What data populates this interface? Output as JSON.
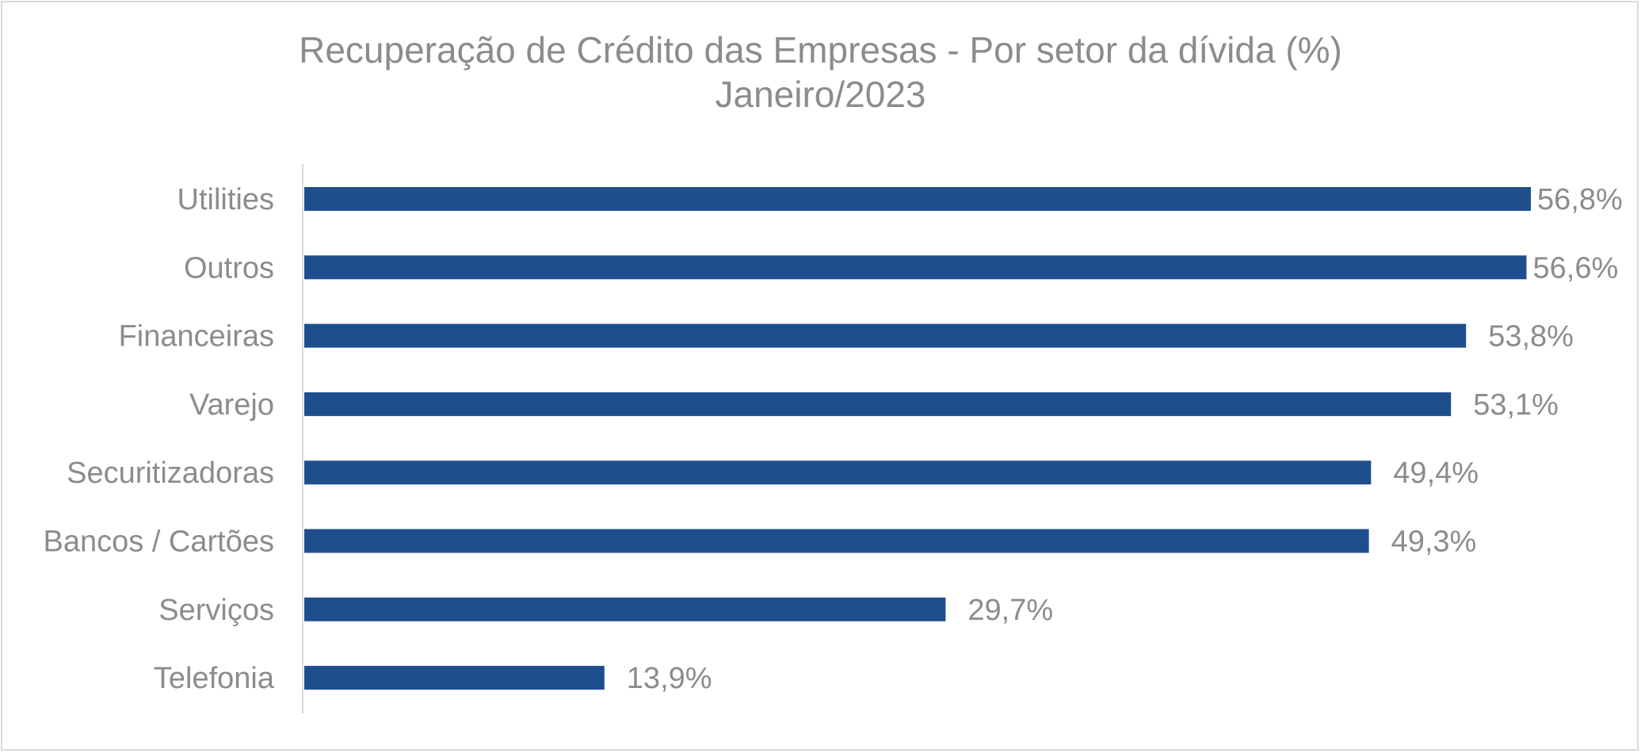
{
  "chart_data": {
    "type": "bar",
    "orientation": "horizontal",
    "title": "Recuperação de Crédito das Empresas - Por setor da dívida (%)",
    "subtitle": "Janeiro/2023",
    "categories": [
      "Utilities",
      "Outros",
      "Financeiras",
      "Varejo",
      "Securitizadoras",
      "Bancos / Cartões",
      "Serviços",
      "Telefonia"
    ],
    "values": [
      56.8,
      56.6,
      53.8,
      53.1,
      49.4,
      49.3,
      29.7,
      13.9
    ],
    "value_labels": [
      "56,8%",
      "56,6%",
      "53,8%",
      "53,1%",
      "49,4%",
      "49,3%",
      "29,7%",
      "13,9%"
    ],
    "xlim": [
      0,
      56.8
    ],
    "grid": false,
    "legend": "none",
    "bar_color": "#1f4e8f",
    "text_color": "#8c8c8c",
    "axis_color": "#d9d9d9"
  }
}
